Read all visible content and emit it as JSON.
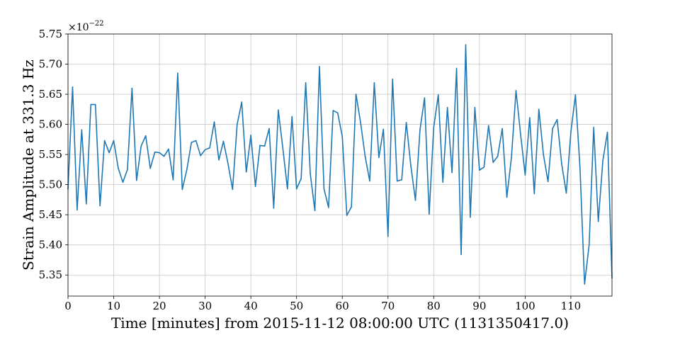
{
  "chart_data": {
    "type": "line",
    "xlabel": "Time [minutes] from 2015-11-12 08:00:00 UTC (1131350417.0)",
    "ylabel": "Strain Amplitude at 331.3 Hz",
    "y_multiplier": "×10",
    "y_multiplier_exponent": "−22",
    "xlim": [
      0,
      119
    ],
    "ylim": [
      5.315,
      5.75
    ],
    "x_ticks": [
      0,
      10,
      20,
      30,
      40,
      50,
      60,
      70,
      80,
      90,
      100,
      110
    ],
    "x_tick_labels": [
      "0",
      "10",
      "20",
      "30",
      "40",
      "50",
      "60",
      "70",
      "80",
      "90",
      "100",
      "110"
    ],
    "y_ticks": [
      5.35,
      5.4,
      5.45,
      5.5,
      5.55,
      5.6,
      5.65,
      5.7,
      5.75
    ],
    "y_tick_labels": [
      "5.35",
      "5.40",
      "5.45",
      "5.50",
      "5.55",
      "5.60",
      "5.65",
      "5.70",
      "5.75"
    ],
    "grid": true,
    "series": [
      {
        "color": "#1f77b4",
        "x": [
          0,
          1,
          2,
          3,
          4,
          5,
          6,
          7,
          8,
          9,
          10,
          11,
          12,
          13,
          14,
          15,
          16,
          17,
          18,
          19,
          20,
          21,
          22,
          23,
          24,
          25,
          26,
          27,
          28,
          29,
          30,
          31,
          32,
          33,
          34,
          35,
          36,
          37,
          38,
          39,
          40,
          41,
          42,
          43,
          44,
          45,
          46,
          47,
          48,
          49,
          50,
          51,
          52,
          53,
          54,
          55,
          56,
          57,
          58,
          59,
          60,
          61,
          62,
          63,
          64,
          65,
          66,
          67,
          68,
          69,
          70,
          71,
          72,
          73,
          74,
          75,
          76,
          77,
          78,
          79,
          80,
          81,
          82,
          83,
          84,
          85,
          86,
          87,
          88,
          89,
          90,
          91,
          92,
          93,
          94,
          95,
          96,
          97,
          98,
          99,
          100,
          101,
          102,
          103,
          104,
          105,
          106,
          107,
          108,
          109,
          110,
          111,
          112,
          113,
          114,
          115,
          116,
          117,
          118,
          119
        ],
        "values": [
          5.493,
          5.662,
          5.458,
          5.591,
          5.468,
          5.633,
          5.633,
          5.465,
          5.573,
          5.553,
          5.573,
          5.527,
          5.504,
          5.525,
          5.66,
          5.507,
          5.564,
          5.581,
          5.527,
          5.554,
          5.553,
          5.547,
          5.559,
          5.508,
          5.685,
          5.492,
          5.525,
          5.57,
          5.573,
          5.548,
          5.558,
          5.561,
          5.604,
          5.541,
          5.572,
          5.535,
          5.492,
          5.6,
          5.637,
          5.521,
          5.582,
          5.497,
          5.565,
          5.564,
          5.593,
          5.461,
          5.624,
          5.56,
          5.493,
          5.613,
          5.493,
          5.51,
          5.669,
          5.518,
          5.457,
          5.696,
          5.493,
          5.462,
          5.623,
          5.619,
          5.58,
          5.449,
          5.463,
          5.65,
          5.603,
          5.547,
          5.506,
          5.669,
          5.545,
          5.592,
          5.414,
          5.675,
          5.506,
          5.508,
          5.603,
          5.531,
          5.474,
          5.591,
          5.644,
          5.451,
          5.595,
          5.649,
          5.504,
          5.628,
          5.52,
          5.693,
          5.384,
          5.732,
          5.446,
          5.628,
          5.524,
          5.529,
          5.598,
          5.537,
          5.547,
          5.593,
          5.479,
          5.545,
          5.656,
          5.584,
          5.516,
          5.611,
          5.485,
          5.625,
          5.55,
          5.505,
          5.593,
          5.608,
          5.534,
          5.486,
          5.587,
          5.649,
          5.528,
          5.335,
          5.4,
          5.595,
          5.439,
          5.54,
          5.587,
          5.345
        ]
      }
    ]
  }
}
